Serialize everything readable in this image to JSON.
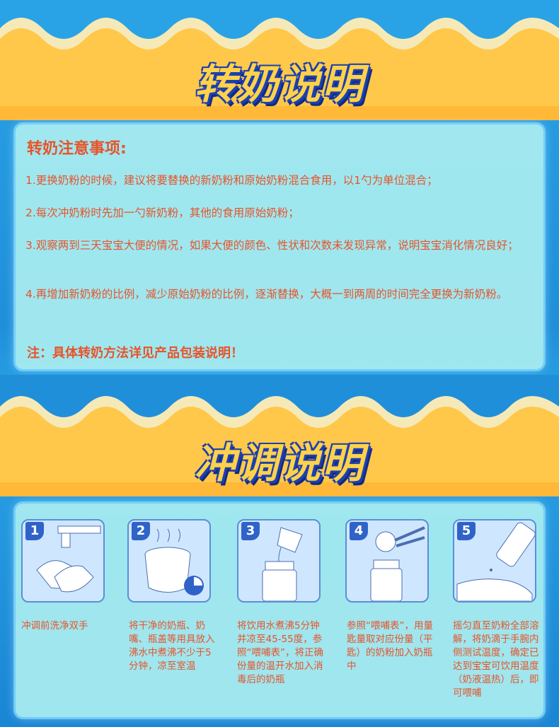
{
  "section1": {
    "title": "转奶说明",
    "notes_heading": "转奶注意事项:",
    "notes": [
      "1.更换奶粉的时候，建议将要替换的新奶粉和原始奶粉混合食用，以1勺为单位混合；",
      "2.每次冲奶粉时先加一勺新奶粉，其他的食用原始奶粉；",
      "3.观察两到三天宝宝大便的情况，如果大便的颜色、性状和次数未发现异常，说明宝宝消化情况良好；",
      "4.再增加新奶粉的比例，减少原始奶粉的比例，逐渐替换，大概一到两周的时间完全更换为新奶粉。"
    ],
    "footnote": "注：具体转奶方法详见产品包装说明！"
  },
  "section2": {
    "title": "冲调说明",
    "steps": [
      {
        "num": "1",
        "icon": "hand-washing-icon",
        "text": "冲调前洗净双手"
      },
      {
        "num": "2",
        "icon": "boiling-pot-icon",
        "text": "将干净的奶瓶、奶嘴、瓶盖等用具放入沸水中煮沸不少于5分钟，凉至室温"
      },
      {
        "num": "3",
        "icon": "pouring-water-icon",
        "text": "将饮用水煮沸5分钟并凉至45-55度，参照“喂哺表”，将正确份量的温开水加入消毒后的奶瓶"
      },
      {
        "num": "4",
        "icon": "milk-powder-scoop-icon",
        "text": "参照“喂哺表”，用量匙量取对应份量（平匙）的奶粉加入奶瓶中"
      },
      {
        "num": "5",
        "icon": "wrist-temperature-test-icon",
        "text": "摇匀直至奶粉全部溶解，将奶滴于手腕内侧测试温度，确定已达到宝宝可饮用温度（奶液温热）后，即可喂哺"
      }
    ]
  },
  "colors": {
    "accent_text": "#e8532a",
    "banner_yellow": "#ffd24a",
    "banner_outline": "#1d3fb0",
    "background_blue": "#2aa3e6",
    "card_bg": "#aaeef0"
  }
}
